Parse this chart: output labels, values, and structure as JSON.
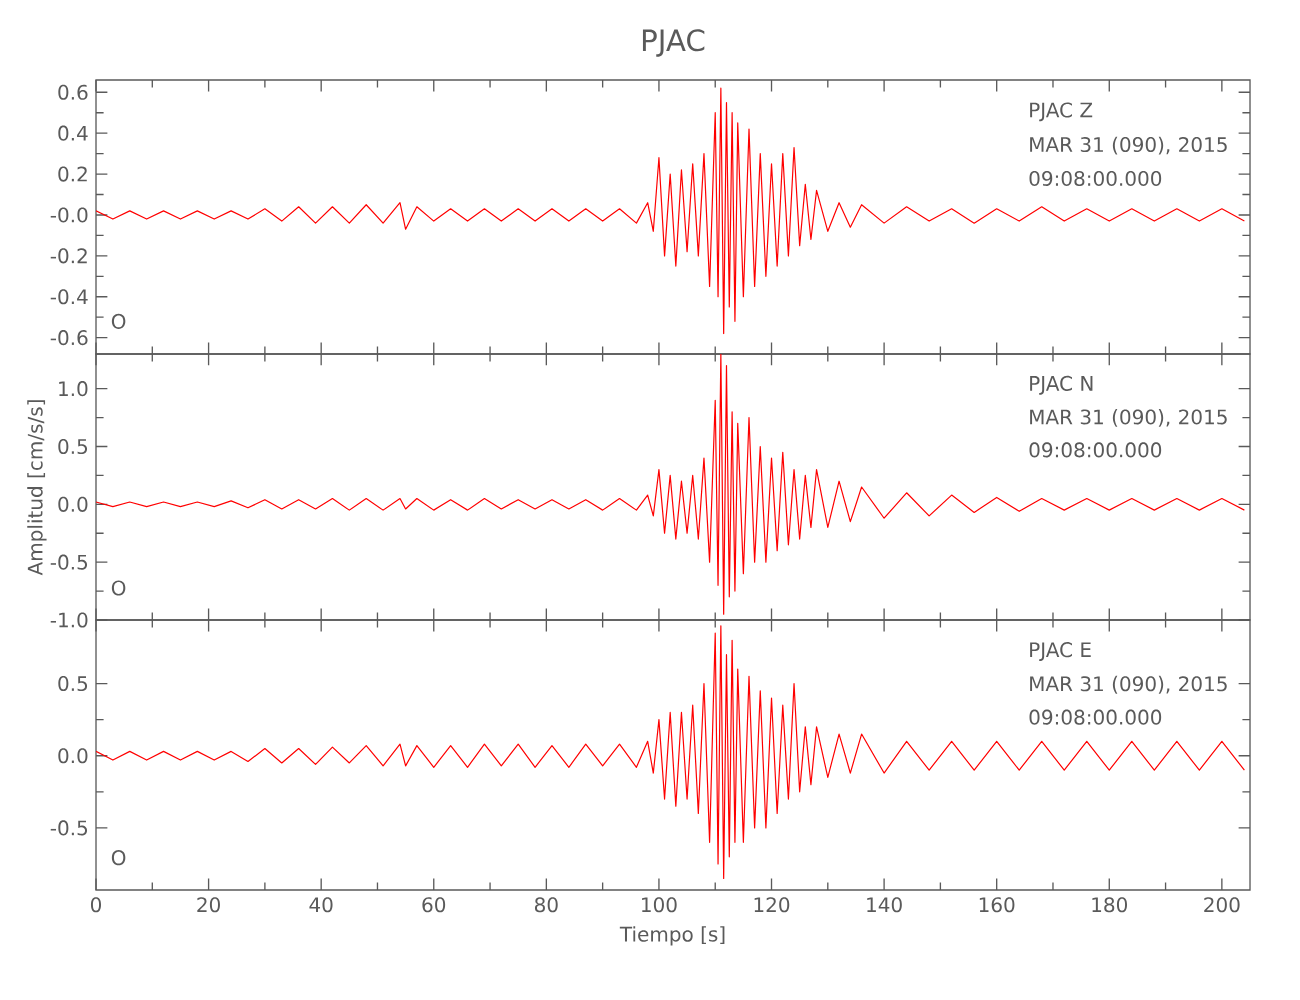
{
  "chart_data": [
    {
      "type": "line",
      "title": "PJAC",
      "color": "#ff0000",
      "tick_labels": "y",
      "xlim": [
        0,
        205
      ],
      "xticks": [
        0,
        20,
        40,
        60,
        80,
        100,
        120,
        140,
        160,
        180,
        200
      ],
      "ylim": [
        -0.68,
        0.66
      ],
      "yticks": [
        -0.6,
        -0.4,
        -0.2,
        {
          "value": 0,
          "label": "-0.0"
        },
        0.2,
        0.4,
        0.6
      ],
      "annotations": [
        "PJAC   Z",
        "MAR 31 (090), 2015",
        "09:08:00.000",
        "O"
      ],
      "x": [
        0,
        3,
        6,
        9,
        12,
        15,
        18,
        21,
        24,
        27,
        30,
        33,
        36,
        39,
        42,
        45,
        48,
        51,
        54,
        55,
        57,
        60,
        63,
        66,
        69,
        72,
        75,
        78,
        81,
        84,
        87,
        90,
        93,
        96,
        98,
        99,
        100,
        101,
        102,
        103,
        104,
        105,
        106,
        107,
        108,
        109,
        110,
        110.5,
        111,
        111.5,
        112,
        112.5,
        113,
        113.5,
        114,
        115,
        116,
        117,
        118,
        119,
        120,
        121,
        122,
        123,
        124,
        125,
        126,
        127,
        128,
        130,
        132,
        134,
        136,
        140,
        144,
        148,
        152,
        156,
        160,
        164,
        168,
        172,
        176,
        180,
        184,
        188,
        192,
        196,
        200,
        204
      ],
      "values": [
        0.02,
        -0.02,
        0.02,
        -0.02,
        0.02,
        -0.02,
        0.02,
        -0.02,
        0.02,
        -0.02,
        0.03,
        -0.03,
        0.04,
        -0.04,
        0.04,
        -0.04,
        0.05,
        -0.04,
        0.06,
        -0.07,
        0.04,
        -0.03,
        0.03,
        -0.03,
        0.03,
        -0.03,
        0.03,
        -0.03,
        0.03,
        -0.03,
        0.03,
        -0.03,
        0.03,
        -0.04,
        0.06,
        -0.08,
        0.28,
        -0.2,
        0.2,
        -0.25,
        0.22,
        -0.18,
        0.25,
        -0.2,
        0.3,
        -0.35,
        0.5,
        -0.4,
        0.62,
        -0.58,
        0.55,
        -0.45,
        0.5,
        -0.52,
        0.45,
        -0.4,
        0.42,
        -0.35,
        0.3,
        -0.3,
        0.25,
        -0.25,
        0.3,
        -0.2,
        0.33,
        -0.15,
        0.15,
        -0.12,
        0.12,
        -0.08,
        0.06,
        -0.06,
        0.05,
        -0.04,
        0.04,
        -0.03,
        0.03,
        -0.04,
        0.03,
        -0.03,
        0.04,
        -0.03,
        0.03,
        -0.03,
        0.03,
        -0.03,
        0.03,
        -0.03,
        0.03,
        -0.03
      ]
    },
    {
      "type": "line",
      "ylabel": "Amplitud [cm/s/s]",
      "color": "#ff0000",
      "tick_labels": "y",
      "xlim": [
        0,
        205
      ],
      "xticks": [
        0,
        20,
        40,
        60,
        80,
        100,
        120,
        140,
        160,
        180,
        200
      ],
      "ylim": [
        -1.0,
        1.3
      ],
      "yticks": [
        {
          "value": -1,
          "label": "-1.0"
        },
        -0.5,
        {
          "value": 0,
          "label": "0.0"
        },
        0.5,
        {
          "value": 1,
          "label": "1.0"
        }
      ],
      "annotations": [
        "PJAC   N",
        "MAR 31 (090), 2015",
        "09:08:00.000",
        "O"
      ],
      "x": [
        0,
        3,
        6,
        9,
        12,
        15,
        18,
        21,
        24,
        27,
        30,
        33,
        36,
        39,
        42,
        45,
        48,
        51,
        54,
        55,
        57,
        60,
        63,
        66,
        69,
        72,
        75,
        78,
        81,
        84,
        87,
        90,
        93,
        96,
        98,
        99,
        100,
        101,
        102,
        103,
        104,
        105,
        106,
        107,
        108,
        109,
        110,
        110.5,
        111,
        111.5,
        112,
        112.5,
        113,
        113.5,
        114,
        115,
        116,
        117,
        118,
        119,
        120,
        121,
        122,
        123,
        124,
        125,
        126,
        127,
        128,
        130,
        132,
        134,
        136,
        140,
        144,
        148,
        152,
        156,
        160,
        164,
        168,
        172,
        176,
        180,
        184,
        188,
        192,
        196,
        200,
        204
      ],
      "values": [
        0.02,
        -0.02,
        0.02,
        -0.02,
        0.02,
        -0.02,
        0.02,
        -0.02,
        0.03,
        -0.03,
        0.04,
        -0.04,
        0.04,
        -0.04,
        0.05,
        -0.05,
        0.05,
        -0.05,
        0.05,
        -0.04,
        0.05,
        -0.05,
        0.04,
        -0.05,
        0.05,
        -0.04,
        0.04,
        -0.04,
        0.04,
        -0.04,
        0.04,
        -0.05,
        0.05,
        -0.05,
        0.08,
        -0.1,
        0.3,
        -0.25,
        0.25,
        -0.3,
        0.2,
        -0.25,
        0.25,
        -0.3,
        0.4,
        -0.5,
        0.9,
        -0.7,
        1.3,
        -0.95,
        1.2,
        -0.8,
        0.8,
        -0.75,
        0.7,
        -0.6,
        0.75,
        -0.5,
        0.5,
        -0.5,
        0.4,
        -0.4,
        0.45,
        -0.35,
        0.3,
        -0.3,
        0.25,
        -0.2,
        0.3,
        -0.2,
        0.2,
        -0.15,
        0.15,
        -0.12,
        0.1,
        -0.1,
        0.08,
        -0.07,
        0.06,
        -0.06,
        0.05,
        -0.05,
        0.05,
        -0.05,
        0.05,
        -0.05,
        0.05,
        -0.05,
        0.05,
        -0.05
      ]
    },
    {
      "type": "line",
      "xlabel": "Tiempo [s]",
      "color": "#ff0000",
      "xlim": [
        0,
        205
      ],
      "xticks": [
        0,
        20,
        40,
        60,
        80,
        100,
        120,
        140,
        160,
        180,
        200
      ],
      "ylim": [
        -0.93,
        0.94
      ],
      "yticks": [
        -0.5,
        {
          "value": 0,
          "label": "0.0"
        },
        0.5
      ],
      "annotations": [
        "PJAC   E",
        "MAR 31 (090), 2015",
        "09:08:00.000",
        "O"
      ],
      "x": [
        0,
        3,
        6,
        9,
        12,
        15,
        18,
        21,
        24,
        27,
        30,
        33,
        36,
        39,
        42,
        45,
        48,
        51,
        54,
        55,
        57,
        60,
        63,
        66,
        69,
        72,
        75,
        78,
        81,
        84,
        87,
        90,
        93,
        96,
        98,
        99,
        100,
        101,
        102,
        103,
        104,
        105,
        106,
        107,
        108,
        109,
        110,
        110.5,
        111,
        111.5,
        112,
        112.5,
        113,
        113.5,
        114,
        115,
        116,
        117,
        118,
        119,
        120,
        121,
        122,
        123,
        124,
        125,
        126,
        127,
        128,
        130,
        132,
        134,
        136,
        140,
        144,
        148,
        152,
        156,
        160,
        164,
        168,
        172,
        176,
        180,
        184,
        188,
        192,
        196,
        200,
        204
      ],
      "values": [
        0.03,
        -0.03,
        0.03,
        -0.03,
        0.03,
        -0.03,
        0.03,
        -0.03,
        0.03,
        -0.04,
        0.05,
        -0.05,
        0.05,
        -0.06,
        0.06,
        -0.05,
        0.07,
        -0.07,
        0.08,
        -0.07,
        0.07,
        -0.08,
        0.07,
        -0.08,
        0.08,
        -0.07,
        0.08,
        -0.08,
        0.07,
        -0.08,
        0.08,
        -0.07,
        0.08,
        -0.08,
        0.1,
        -0.12,
        0.25,
        -0.3,
        0.3,
        -0.35,
        0.3,
        -0.3,
        0.35,
        -0.4,
        0.5,
        -0.6,
        0.85,
        -0.75,
        0.9,
        -0.85,
        0.7,
        -0.7,
        0.8,
        -0.6,
        0.6,
        -0.6,
        0.55,
        -0.5,
        0.45,
        -0.5,
        0.4,
        -0.4,
        0.35,
        -0.3,
        0.5,
        -0.25,
        0.2,
        -0.2,
        0.2,
        -0.15,
        0.15,
        -0.12,
        0.15,
        -0.12,
        0.1,
        -0.1,
        0.1,
        -0.1,
        0.1,
        -0.1,
        0.1,
        -0.1,
        0.1,
        -0.1,
        0.1,
        -0.1,
        0.1,
        -0.1,
        0.1,
        -0.1
      ]
    }
  ]
}
